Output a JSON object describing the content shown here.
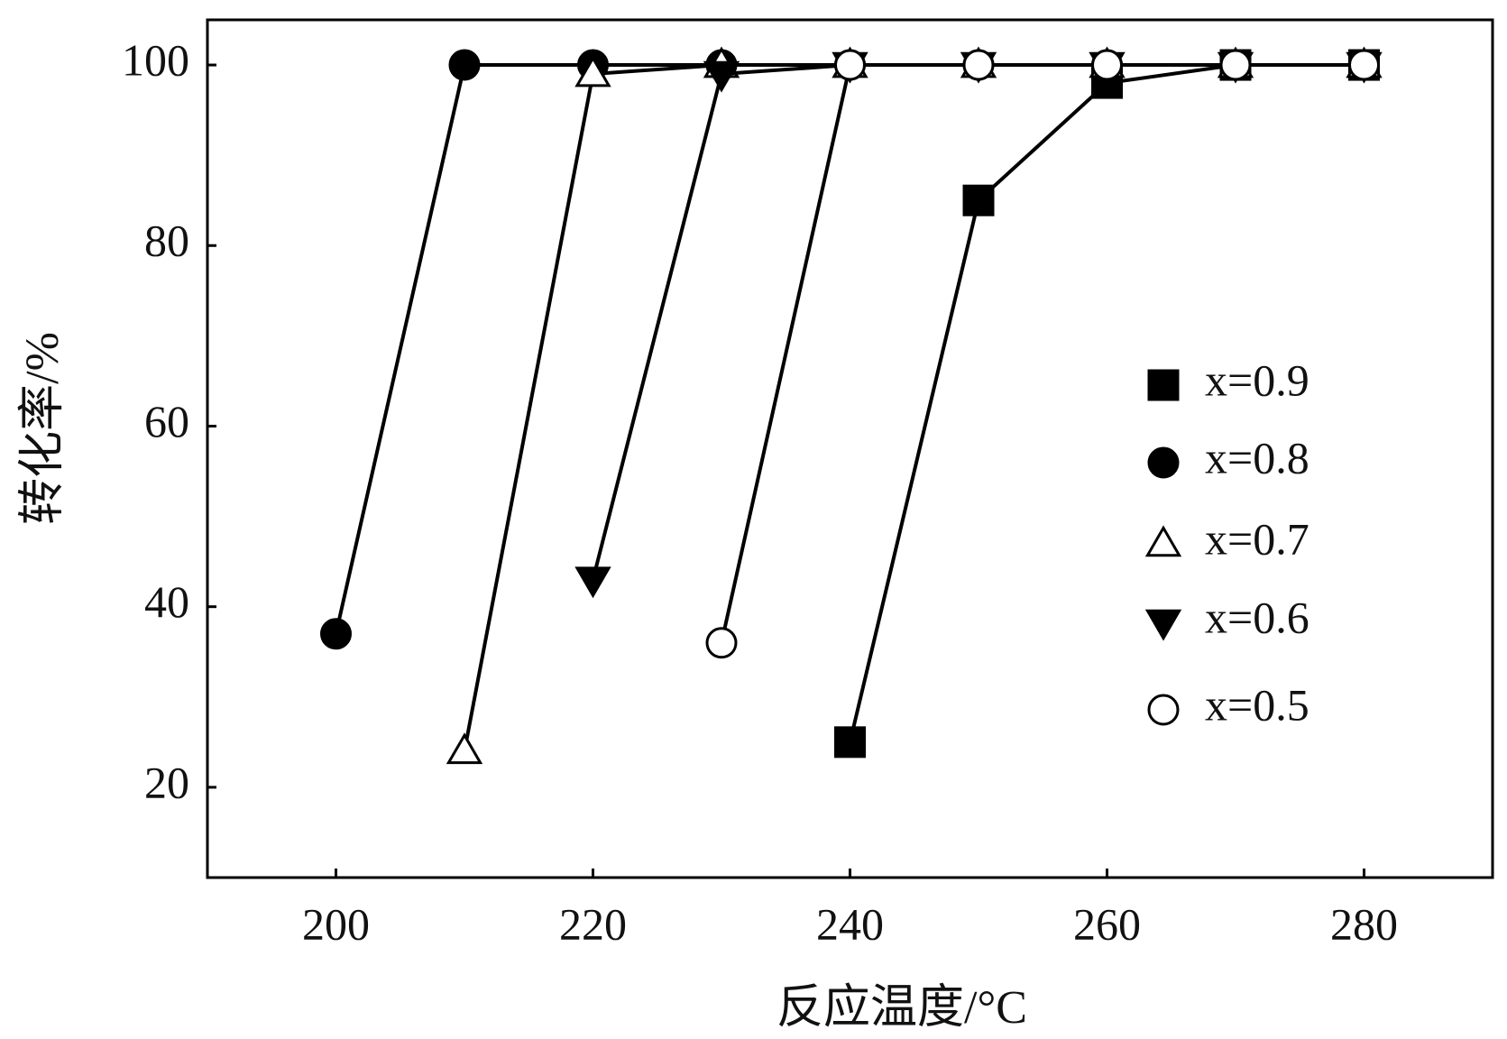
{
  "chart_data": {
    "type": "line",
    "xlabel": "反应温度/°C",
    "ylabel": "转化率/%",
    "xlim": [
      190,
      290
    ],
    "ylim": [
      10,
      105
    ],
    "xticks": [
      200,
      220,
      240,
      260,
      280
    ],
    "yticks": [
      20,
      40,
      60,
      80,
      100
    ],
    "legend": "right",
    "series": [
      {
        "name": "x=0.9",
        "color": "#000000",
        "marker": "square",
        "filled": true,
        "x": [
          240,
          250,
          260,
          270,
          280
        ],
        "values": [
          25,
          85,
          98,
          100,
          100
        ]
      },
      {
        "name": "x=0.8",
        "color": "#000000",
        "marker": "circle",
        "filled": true,
        "x": [
          200,
          210,
          220,
          230,
          240,
          250,
          260,
          270,
          280
        ],
        "values": [
          37,
          100,
          100,
          100,
          100,
          100,
          100,
          100,
          100
        ]
      },
      {
        "name": "x=0.7",
        "color": "#000000",
        "marker": "triangle-up",
        "filled": false,
        "x": [
          210,
          220,
          230,
          240,
          250,
          260,
          270,
          280
        ],
        "values": [
          24,
          99,
          100,
          100,
          100,
          100,
          100,
          100
        ]
      },
      {
        "name": "x=0.6",
        "color": "#000000",
        "marker": "triangle-down",
        "filled": true,
        "x": [
          220,
          230,
          240,
          250,
          260,
          270,
          280
        ],
        "values": [
          43,
          99,
          100,
          100,
          100,
          100,
          100
        ]
      },
      {
        "name": "x=0.5",
        "color": "#000000",
        "marker": "circle",
        "filled": false,
        "x": [
          230,
          240,
          250,
          260,
          270,
          280
        ],
        "values": [
          36,
          100,
          100,
          100,
          100,
          100
        ]
      }
    ]
  }
}
